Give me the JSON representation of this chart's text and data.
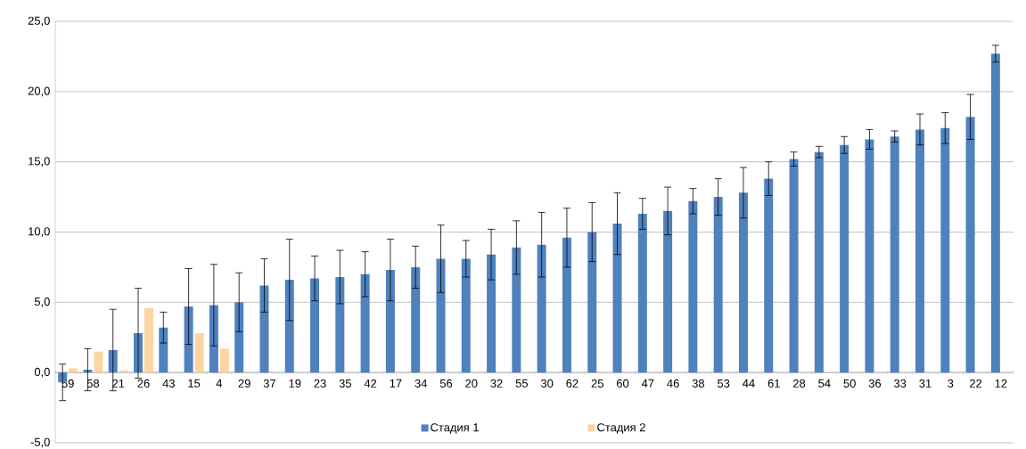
{
  "chart_data": {
    "type": "bar",
    "categories": [
      "59",
      "58",
      "21",
      "26",
      "43",
      "15",
      "4",
      "29",
      "37",
      "19",
      "23",
      "35",
      "42",
      "17",
      "34",
      "56",
      "20",
      "32",
      "55",
      "30",
      "62",
      "25",
      "60",
      "47",
      "46",
      "38",
      "53",
      "44",
      "61",
      "28",
      "54",
      "50",
      "36",
      "33",
      "31",
      "3",
      "22",
      "12"
    ],
    "series": [
      {
        "name": "Стадия 1",
        "color": "#4f81bd",
        "values": [
          -0.7,
          0.2,
          1.6,
          2.8,
          3.2,
          4.7,
          4.8,
          5.0,
          6.2,
          6.6,
          6.7,
          6.8,
          7.0,
          7.3,
          7.5,
          8.1,
          8.1,
          8.4,
          8.9,
          9.1,
          9.6,
          10.0,
          10.6,
          11.3,
          11.5,
          12.2,
          12.5,
          12.8,
          13.8,
          15.2,
          15.7,
          16.2,
          16.6,
          16.8,
          17.3,
          17.4,
          18.2,
          22.7
        ],
        "errors": [
          1.3,
          1.5,
          2.9,
          3.2,
          1.1,
          2.7,
          2.9,
          2.1,
          1.9,
          2.9,
          1.6,
          1.9,
          1.6,
          2.2,
          1.5,
          2.4,
          1.3,
          1.8,
          1.9,
          2.3,
          2.1,
          2.1,
          2.2,
          1.1,
          1.7,
          0.9,
          1.3,
          1.8,
          1.2,
          0.5,
          0.4,
          0.6,
          0.7,
          0.4,
          1.1,
          1.1,
          1.6,
          0.6
        ]
      },
      {
        "name": "Стадия 2",
        "color": "#fcd5a0",
        "values": [
          0.3,
          1.5,
          0.15,
          4.6,
          null,
          2.8,
          1.7,
          null,
          null,
          null,
          null,
          null,
          null,
          null,
          null,
          null,
          null,
          null,
          null,
          null,
          null,
          null,
          null,
          null,
          null,
          null,
          null,
          null,
          null,
          null,
          null,
          null,
          null,
          null,
          null,
          null,
          null,
          null
        ]
      }
    ],
    "ylim": [
      -5,
      25
    ],
    "yticks": [
      {
        "value": -5,
        "label": "-5,0"
      },
      {
        "value": 0,
        "label": "0,0"
      },
      {
        "value": 5,
        "label": "5,0"
      },
      {
        "value": 10,
        "label": "10,0"
      },
      {
        "value": 15,
        "label": "15,0"
      },
      {
        "value": 20,
        "label": "20,0"
      },
      {
        "value": 25,
        "label": "25,0"
      }
    ],
    "grid": "y",
    "legend": "bottom"
  }
}
